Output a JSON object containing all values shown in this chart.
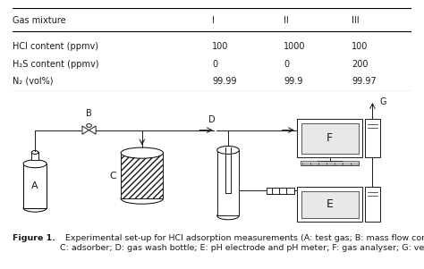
{
  "table_header": [
    "Gas mixture",
    "I",
    "II",
    "III"
  ],
  "table_rows": [
    [
      "HCl content (ppmv)",
      "100",
      "1000",
      "100"
    ],
    [
      "H₂S content (ppmv)",
      "0",
      "0",
      "200"
    ],
    [
      "N₂ (vol%)",
      "99.99",
      "99.9",
      "99.97"
    ]
  ],
  "figure_caption_bold": "Figure 1.",
  "figure_caption_rest": "  Experimental set-up for HCl adsorption measurements (A: test gas; B: mass flow controller;\nC: adsorber; D: gas wash bottle; E: pH electrode and pH meter; F: gas analyser; G: vent).",
  "bg_color": "#ffffff",
  "text_color": "#1a1a1a",
  "font_size": 7.0,
  "caption_font_size": 6.8
}
